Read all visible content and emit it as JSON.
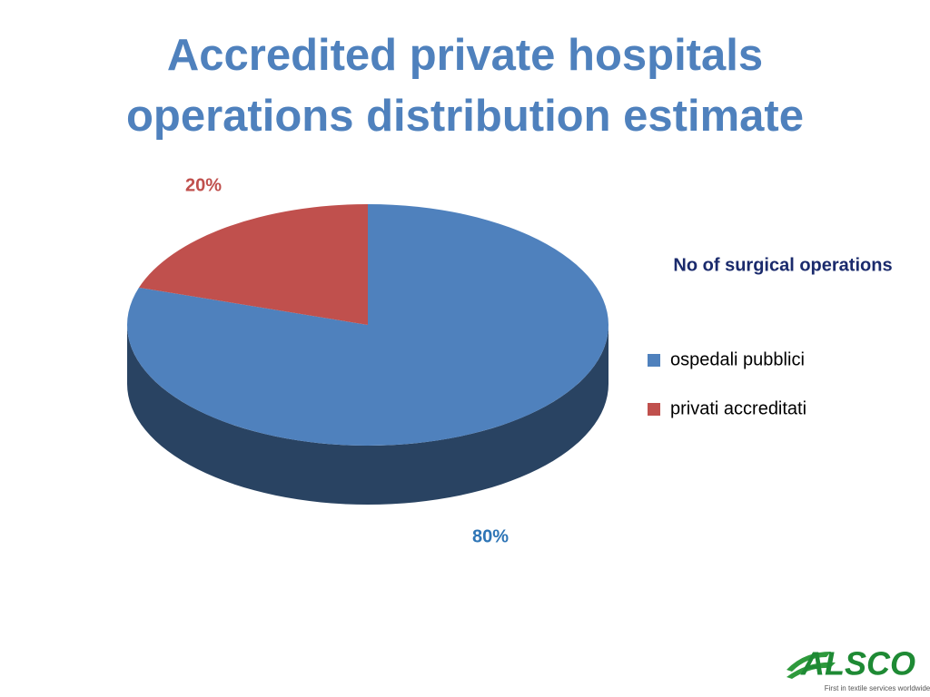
{
  "chart_data": {
    "type": "pie",
    "title": "Accredited private hospitals operations distribution estimate",
    "legend_title": "No of surgical operations",
    "categories": [
      "ospedali pubblici",
      "privati accreditati"
    ],
    "values": [
      80,
      20
    ],
    "value_labels": [
      "80%",
      "20%"
    ],
    "colors": [
      "#4f81bd",
      "#c0504d"
    ],
    "legend": "right"
  },
  "logo": {
    "name": "ALSCO",
    "tagline": "First in textile services worldwide"
  }
}
